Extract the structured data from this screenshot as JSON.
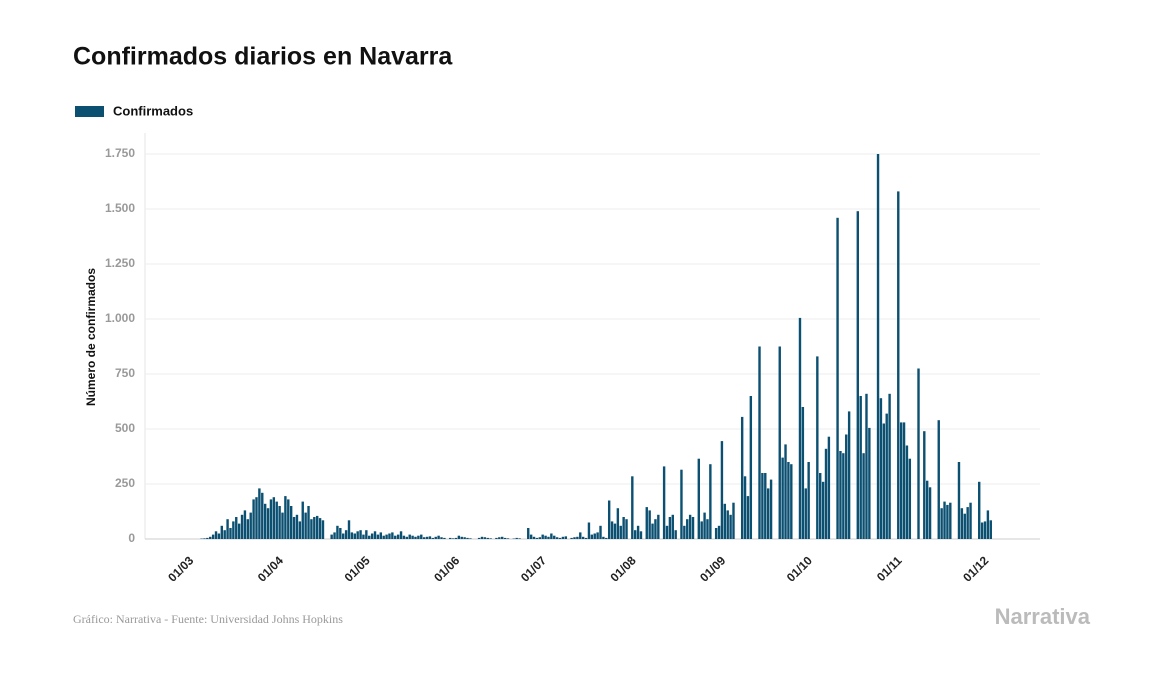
{
  "chart_data": {
    "type": "bar",
    "title": "Confirmados diarios en Navarra",
    "y_label": "Número de confirmados",
    "source": "Gráfico: Narrativa - Fuente: Universidad Johns Hopkins",
    "logo": "Narrativa",
    "legend": "top-left",
    "grid": true,
    "ylim": [
      0,
      1750
    ],
    "yticks": [
      0,
      250,
      500,
      750,
      {
        "value": 1000,
        "label": "1.000"
      },
      {
        "value": 1250,
        "label": "1.250"
      },
      {
        "value": 1500,
        "label": "1.500"
      },
      {
        "value": 1750,
        "label": "1.750"
      }
    ],
    "categories": [
      "01/03",
      null,
      null,
      null,
      null,
      null,
      null,
      null,
      null,
      null,
      null,
      null,
      null,
      null,
      null,
      null,
      null,
      null,
      null,
      null,
      null,
      null,
      null,
      null,
      null,
      null,
      null,
      null,
      null,
      null,
      null,
      "01/04",
      null,
      null,
      null,
      null,
      null,
      null,
      null,
      null,
      null,
      null,
      null,
      null,
      null,
      null,
      null,
      null,
      null,
      null,
      null,
      null,
      null,
      null,
      null,
      null,
      null,
      null,
      null,
      null,
      null,
      "01/05",
      null,
      null,
      null,
      null,
      null,
      null,
      null,
      null,
      null,
      null,
      null,
      null,
      null,
      null,
      null,
      null,
      null,
      null,
      null,
      null,
      null,
      null,
      null,
      null,
      null,
      null,
      null,
      null,
      null,
      null,
      "01/06",
      null,
      null,
      null,
      null,
      null,
      null,
      null,
      null,
      null,
      null,
      null,
      null,
      null,
      null,
      null,
      null,
      null,
      null,
      null,
      null,
      null,
      null,
      null,
      null,
      null,
      null,
      null,
      null,
      null,
      "01/07",
      null,
      null,
      null,
      null,
      null,
      null,
      null,
      null,
      null,
      null,
      null,
      null,
      null,
      null,
      null,
      null,
      null,
      null,
      null,
      null,
      null,
      null,
      null,
      null,
      null,
      null,
      null,
      null,
      null,
      null,
      "01/08",
      null,
      null,
      null,
      null,
      null,
      null,
      null,
      null,
      null,
      null,
      null,
      null,
      null,
      null,
      null,
      null,
      null,
      null,
      null,
      null,
      null,
      null,
      null,
      null,
      null,
      null,
      null,
      null,
      null,
      null,
      "01/09",
      null,
      null,
      null,
      null,
      null,
      null,
      null,
      null,
      null,
      null,
      null,
      null,
      null,
      null,
      null,
      null,
      null,
      null,
      null,
      null,
      null,
      null,
      null,
      null,
      null,
      null,
      null,
      null,
      null,
      "01/10",
      null,
      null,
      null,
      null,
      null,
      null,
      null,
      null,
      null,
      null,
      null,
      null,
      null,
      null,
      null,
      null,
      null,
      null,
      null,
      null,
      null,
      null,
      null,
      null,
      null,
      null,
      null,
      null,
      null,
      null,
      "01/11",
      null,
      null,
      null,
      null,
      null,
      null,
      null,
      null,
      null,
      null,
      null,
      null,
      null,
      null,
      null,
      null,
      null,
      null,
      null,
      null,
      null,
      null,
      null,
      null,
      null,
      null,
      null,
      null,
      null,
      "01/12",
      null,
      null
    ],
    "series": [
      {
        "name": "Confirmados",
        "color": "#0b4f71",
        "values": [
          0,
          0,
          0,
          0,
          2,
          3,
          5,
          10,
          20,
          35,
          25,
          60,
          40,
          90,
          50,
          80,
          100,
          70,
          110,
          130,
          90,
          120,
          180,
          190,
          230,
          210,
          160,
          140,
          180,
          190,
          170,
          150,
          120,
          195,
          180,
          150,
          100,
          110,
          80,
          170,
          120,
          150,
          90,
          100,
          105,
          95,
          85,
          0,
          0,
          20,
          30,
          60,
          50,
          25,
          40,
          85,
          30,
          25,
          35,
          40,
          20,
          40,
          15,
          25,
          35,
          20,
          30,
          15,
          20,
          25,
          30,
          15,
          20,
          35,
          15,
          10,
          20,
          15,
          10,
          15,
          20,
          8,
          10,
          12,
          5,
          10,
          15,
          8,
          5,
          0,
          5,
          3,
          5,
          15,
          10,
          8,
          5,
          3,
          0,
          0,
          5,
          10,
          8,
          5,
          3,
          0,
          5,
          8,
          10,
          5,
          3,
          0,
          2,
          5,
          3,
          0,
          0,
          50,
          20,
          10,
          5,
          8,
          20,
          15,
          10,
          25,
          15,
          8,
          5,
          10,
          12,
          0,
          5,
          8,
          10,
          30,
          10,
          5,
          75,
          20,
          25,
          30,
          60,
          10,
          5,
          175,
          80,
          70,
          140,
          60,
          100,
          90,
          0,
          285,
          40,
          60,
          35,
          0,
          145,
          130,
          70,
          90,
          110,
          0,
          330,
          60,
          100,
          110,
          40,
          0,
          315,
          60,
          90,
          110,
          100,
          0,
          365,
          80,
          120,
          90,
          340,
          0,
          50,
          60,
          445,
          160,
          130,
          110,
          165,
          0,
          0,
          555,
          285,
          195,
          650,
          0,
          0,
          875,
          300,
          300,
          230,
          270,
          0,
          0,
          875,
          370,
          430,
          350,
          340,
          0,
          0,
          1005,
          600,
          230,
          350,
          0,
          0,
          830,
          300,
          260,
          410,
          465,
          0,
          0,
          1460,
          400,
          390,
          475,
          580,
          0,
          0,
          1490,
          650,
          390,
          660,
          505,
          0,
          0,
          1750,
          640,
          525,
          570,
          660,
          0,
          0,
          1580,
          530,
          530,
          425,
          365,
          0,
          0,
          775,
          0,
          490,
          265,
          235,
          0,
          0,
          540,
          140,
          170,
          155,
          165,
          0,
          0,
          350,
          140,
          115,
          145,
          165,
          0,
          0,
          260,
          75,
          80,
          130,
          85
        ]
      }
    ]
  }
}
